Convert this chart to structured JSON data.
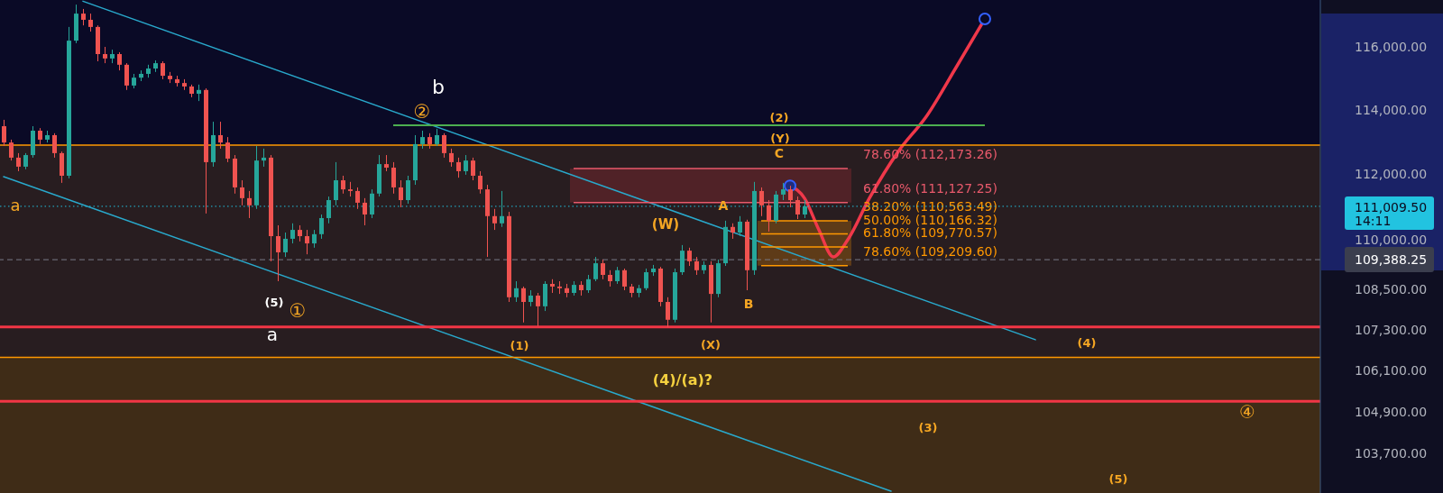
{
  "chart_data": {
    "type": "candlestick",
    "categories": [
      null,
      null,
      null,
      null,
      null,
      null,
      null,
      null,
      null,
      null,
      null,
      null,
      null,
      null,
      null,
      null,
      null,
      null,
      null,
      null,
      null,
      null,
      null,
      null,
      null,
      null,
      null,
      null,
      null,
      null,
      null,
      null,
      null,
      null,
      null,
      null,
      null,
      null,
      null,
      null,
      null,
      null,
      null,
      null,
      null,
      null,
      null,
      null,
      null,
      null,
      null,
      null,
      null,
      null,
      null,
      null,
      null,
      null,
      null,
      null,
      null,
      null,
      null,
      null,
      null,
      null,
      null,
      null,
      null,
      null,
      null,
      null,
      null,
      null,
      null,
      null,
      null,
      null,
      null,
      null,
      null,
      null,
      null,
      null,
      null,
      null,
      null,
      null,
      null,
      null,
      null,
      null,
      null,
      null,
      null,
      null,
      null,
      null,
      null,
      null,
      null,
      null,
      null,
      null,
      null,
      null,
      null,
      null,
      null,
      null,
      null,
      null,
      null,
      null,
      null,
      null,
      null,
      null,
      null,
      null,
      null,
      null,
      null,
      null,
      null,
      null,
      null,
      null,
      null,
      null,
      null,
      null,
      null,
      null,
      null,
      null,
      null,
      null,
      null,
      null,
      null,
      null,
      null,
      null,
      null,
      null,
      null,
      null,
      null,
      null,
      null,
      null,
      null,
      null,
      null,
      null,
      null,
      null,
      null,
      null,
      null,
      null,
      null,
      null,
      null,
      null,
      null,
      null,
      null,
      null,
      null,
      null,
      null,
      null,
      null,
      null,
      null,
      null,
      null,
      null,
      null,
      null,
      null
    ],
    "ohlc": [
      [
        113490,
        113690,
        112870,
        112980
      ],
      [
        112980,
        113070,
        112420,
        112510
      ],
      [
        112510,
        112650,
        112090,
        112230
      ],
      [
        112230,
        112650,
        112150,
        112590
      ],
      [
        112590,
        113490,
        112510,
        113350
      ],
      [
        113350,
        113430,
        112930,
        113070
      ],
      [
        113070,
        113350,
        112980,
        113210
      ],
      [
        113210,
        113270,
        112510,
        112650
      ],
      [
        112650,
        112700,
        111730,
        111950
      ],
      [
        111950,
        116640,
        111870,
        116200
      ],
      [
        116200,
        117360,
        116120,
        117070
      ],
      [
        117070,
        117220,
        116690,
        116870
      ],
      [
        116870,
        117070,
        116490,
        116640
      ],
      [
        116640,
        116690,
        115540,
        115770
      ],
      [
        115770,
        116000,
        115480,
        115630
      ],
      [
        115630,
        115910,
        115480,
        115770
      ],
      [
        115770,
        115830,
        115250,
        115430
      ],
      [
        115430,
        115480,
        114630,
        114770
      ],
      [
        114770,
        115140,
        114680,
        115020
      ],
      [
        115020,
        115250,
        114910,
        115140
      ],
      [
        115140,
        115430,
        115020,
        115310
      ],
      [
        115310,
        115570,
        115200,
        115480
      ],
      [
        115480,
        115540,
        114970,
        115080
      ],
      [
        115080,
        115200,
        114850,
        114970
      ],
      [
        114970,
        115080,
        114740,
        114850
      ],
      [
        114850,
        114970,
        114630,
        114740
      ],
      [
        114740,
        114800,
        114400,
        114510
      ],
      [
        114510,
        114800,
        114280,
        114630
      ],
      [
        114630,
        114680,
        110790,
        112370
      ],
      [
        112370,
        113630,
        112230,
        113210
      ],
      [
        113210,
        113630,
        112790,
        112980
      ],
      [
        112980,
        113150,
        112370,
        112480
      ],
      [
        112480,
        112590,
        111400,
        111590
      ],
      [
        111590,
        111810,
        111040,
        111260
      ],
      [
        111260,
        111480,
        110650,
        111040
      ],
      [
        111040,
        112870,
        110930,
        112420
      ],
      [
        112420,
        112790,
        112230,
        112510
      ],
      [
        112510,
        112590,
        109340,
        110100
      ],
      [
        110100,
        110430,
        108740,
        109610
      ],
      [
        109610,
        110210,
        109470,
        110020
      ],
      [
        110020,
        110490,
        109880,
        110290
      ],
      [
        110290,
        110430,
        109940,
        110100
      ],
      [
        110100,
        110290,
        109550,
        109880
      ],
      [
        109880,
        110290,
        109750,
        110160
      ],
      [
        110160,
        110760,
        110020,
        110650
      ],
      [
        110650,
        111310,
        110490,
        111200
      ],
      [
        111200,
        112370,
        111040,
        111810
      ],
      [
        111810,
        111950,
        111400,
        111530
      ],
      [
        111530,
        111760,
        111310,
        111480
      ],
      [
        111480,
        111590,
        110930,
        111120
      ],
      [
        111120,
        111260,
        110430,
        110760
      ],
      [
        110760,
        111530,
        110650,
        111400
      ],
      [
        111400,
        112590,
        111310,
        112310
      ],
      [
        112310,
        112590,
        112090,
        112200
      ],
      [
        112200,
        112370,
        111400,
        111590
      ],
      [
        111590,
        111810,
        110980,
        111200
      ],
      [
        111200,
        111950,
        111090,
        111810
      ],
      [
        111810,
        113210,
        111670,
        112930
      ],
      [
        112930,
        113350,
        112790,
        113150
      ],
      [
        113150,
        113270,
        112790,
        112930
      ],
      [
        112930,
        113410,
        112870,
        113210
      ],
      [
        113210,
        113270,
        112510,
        112650
      ],
      [
        112650,
        112790,
        112230,
        112370
      ],
      [
        112370,
        112510,
        111890,
        112090
      ],
      [
        112090,
        112590,
        111980,
        112420
      ],
      [
        112420,
        112510,
        111810,
        111950
      ],
      [
        111950,
        112090,
        111400,
        111530
      ],
      [
        111530,
        111670,
        109470,
        110710
      ],
      [
        110710,
        110930,
        110290,
        110490
      ],
      [
        110490,
        111480,
        110380,
        110710
      ],
      [
        110710,
        110840,
        108120,
        108260
      ],
      [
        108260,
        108740,
        108120,
        108530
      ],
      [
        108530,
        108580,
        107510,
        108120
      ],
      [
        108120,
        108470,
        107990,
        108310
      ],
      [
        108310,
        108390,
        107400,
        107990
      ],
      [
        107990,
        108740,
        107850,
        108660
      ],
      [
        108660,
        108800,
        108390,
        108580
      ],
      [
        108580,
        108740,
        108360,
        108530
      ],
      [
        108530,
        108660,
        108260,
        108390
      ],
      [
        108390,
        108740,
        108310,
        108630
      ],
      [
        108630,
        108740,
        108310,
        108470
      ],
      [
        108470,
        108930,
        108390,
        108800
      ],
      [
        108800,
        109470,
        108740,
        109280
      ],
      [
        109280,
        109390,
        108800,
        108930
      ],
      [
        108930,
        109070,
        108580,
        108740
      ],
      [
        108740,
        109170,
        108660,
        109070
      ],
      [
        109070,
        109120,
        108470,
        108580
      ],
      [
        108580,
        108660,
        108260,
        108390
      ],
      [
        108390,
        108630,
        108260,
        108530
      ],
      [
        108530,
        109120,
        108470,
        109010
      ],
      [
        109010,
        109230,
        108900,
        109120
      ],
      [
        109120,
        109170,
        107990,
        108120
      ],
      [
        108120,
        108260,
        107370,
        107590
      ],
      [
        107590,
        109120,
        107510,
        109010
      ],
      [
        109010,
        109830,
        108930,
        109660
      ],
      [
        109660,
        109750,
        109200,
        109340
      ],
      [
        109340,
        109470,
        108930,
        109070
      ],
      [
        109070,
        109340,
        108960,
        109230
      ],
      [
        109230,
        109340,
        107510,
        108360
      ],
      [
        108360,
        109390,
        108260,
        109280
      ],
      [
        109280,
        110570,
        109200,
        110380
      ],
      [
        110380,
        110490,
        110020,
        110210
      ],
      [
        110210,
        110710,
        110100,
        110540
      ],
      [
        110540,
        110600,
        108470,
        109070
      ],
      [
        109070,
        111760,
        108930,
        111480
      ],
      [
        111480,
        111590,
        110710,
        111040
      ],
      [
        111040,
        111200,
        110240,
        110570
      ],
      [
        110570,
        111480,
        110490,
        111370
      ],
      [
        111370,
        111730,
        111200,
        111530
      ],
      [
        111530,
        111640,
        110980,
        111200
      ],
      [
        111200,
        111310,
        110620,
        110760
      ],
      [
        110760,
        111200,
        110650,
        111009.5
      ],
      null,
      null,
      null,
      null,
      null,
      null,
      null,
      null,
      null,
      null,
      null,
      null,
      null,
      null,
      null,
      null,
      null,
      null,
      null,
      null,
      null,
      null,
      null,
      null,
      null,
      null,
      null,
      null,
      null,
      null,
      null,
      null,
      null,
      null,
      null,
      null,
      null,
      null,
      null,
      null,
      null,
      null,
      null,
      null,
      null,
      null,
      null,
      null,
      null,
      null,
      null,
      null,
      null,
      null,
      null,
      null,
      null,
      null,
      null,
      null,
      null,
      null,
      null,
      null,
      null,
      null,
      null,
      null,
      null,
      null,
      null
    ],
    "colors": [
      "#ef5350",
      "#ef5350",
      "#ef5350",
      "#26a69a",
      "#26a69a",
      "#ef5350",
      "#26a69a",
      "#ef5350",
      "#ef5350",
      "#26a69a",
      "#26a69a",
      "#ef5350",
      "#ef5350",
      "#ef5350",
      "#ef5350",
      "#26a69a",
      "#ef5350",
      "#ef5350",
      "#26a69a",
      "#26a69a",
      "#26a69a",
      "#26a69a",
      "#ef5350",
      "#ef5350",
      "#ef5350",
      "#ef5350",
      "#ef5350",
      "#26a69a",
      "#ef5350",
      "#26a69a",
      "#ef5350",
      "#ef5350",
      "#ef5350",
      "#ef5350",
      "#ef5350",
      "#26a69a",
      "#26a69a",
      "#ef5350",
      "#ef5350",
      "#26a69a",
      "#26a69a",
      "#ef5350",
      "#ef5350",
      "#26a69a",
      "#26a69a",
      "#26a69a",
      "#26a69a",
      "#ef5350",
      "#ef5350",
      "#ef5350",
      "#ef5350",
      "#26a69a",
      "#26a69a",
      "#ef5350",
      "#ef5350",
      "#ef5350",
      "#26a69a",
      "#26a69a",
      "#26a69a",
      "#ef5350",
      "#26a69a",
      "#ef5350",
      "#ef5350",
      "#ef5350",
      "#26a69a",
      "#ef5350",
      "#ef5350",
      "#ef5350",
      "#ef5350",
      "#26a69a",
      "#ef5350",
      "#26a69a",
      "#ef5350",
      "#26a69a",
      "#ef5350",
      "#26a69a",
      "#ef5350",
      "#ef5350",
      "#ef5350",
      "#26a69a",
      "#ef5350",
      "#26a69a",
      "#26a69a",
      "#ef5350",
      "#ef5350",
      "#26a69a",
      "#ef5350",
      "#ef5350",
      "#26a69a",
      "#26a69a",
      "#26a69a",
      "#ef5350",
      "#ef5350",
      "#26a69a",
      "#26a69a",
      "#ef5350",
      "#ef5350",
      "#26a69a",
      "#ef5350",
      "#26a69a",
      "#26a69a",
      "#ef5350",
      "#26a69a",
      "#ef5350",
      "#26a69a",
      "#ef5350",
      "#ef5350",
      "#26a69a",
      "#26a69a",
      "#ef5350",
      "#ef5350",
      "#26a69a",
      null,
      null,
      null,
      null,
      null,
      null,
      null,
      null,
      null,
      null,
      null,
      null,
      null,
      null,
      null,
      null,
      null,
      null,
      null,
      null,
      null,
      null,
      null,
      null,
      null,
      null,
      null,
      null,
      null,
      null,
      null,
      null,
      null,
      null,
      null,
      null,
      null,
      null,
      null,
      null,
      null,
      null,
      null,
      null,
      null,
      null,
      null,
      null,
      null,
      null,
      null,
      null,
      null,
      null,
      null,
      null,
      null,
      null,
      null,
      null,
      null,
      null,
      null,
      null,
      null,
      null,
      null,
      null,
      null,
      null,
      null
    ],
    "series": [
      {
        "type": "line",
        "color": "#29a9cc",
        "values": [
          null,
          null,
          null,
          null,
          null,
          null,
          null,
          null,
          null,
          null,
          null,
          117470,
          null,
          null,
          null,
          null,
          null,
          null,
          null,
          null,
          null,
          null,
          null,
          null,
          null,
          null,
          null,
          null,
          null,
          null,
          null,
          null,
          null,
          null,
          null,
          null,
          null,
          null,
          null,
          null,
          null,
          null,
          null,
          null,
          null,
          null,
          null,
          null,
          null,
          null,
          null,
          null,
          null,
          null,
          null,
          null,
          null,
          null,
          null,
          null,
          null,
          null,
          null,
          null,
          null,
          null,
          null,
          null,
          null,
          null,
          null,
          null,
          null,
          null,
          null,
          null,
          null,
          null,
          null,
          null,
          null,
          null,
          null,
          null,
          null,
          null,
          null,
          null,
          null,
          null,
          null,
          null,
          null,
          null,
          null,
          null,
          null,
          null,
          null,
          null,
          null,
          null,
          null,
          null,
          null,
          null,
          null,
          null,
          null,
          null,
          null,
          null,
          null,
          null,
          null,
          null,
          null,
          null,
          null,
          null,
          null,
          null,
          null,
          null,
          null,
          null,
          null,
          null,
          null,
          null,
          null,
          null,
          null,
          null,
          null,
          null,
          null,
          null,
          null,
          null,
          null,
          null,
          null,
          107000,
          null,
          null,
          null,
          null,
          null,
          null,
          null,
          null,
          null,
          null,
          null,
          null,
          null,
          null,
          null,
          null,
          null,
          null,
          null,
          null,
          null,
          null,
          null,
          null,
          null,
          null,
          null,
          null,
          null,
          null,
          null,
          null,
          null,
          null,
          null,
          null,
          null,
          null,
          null
        ]
      },
      {
        "type": "line",
        "color": "#29a9cc",
        "values": [
          111920,
          null,
          null,
          null,
          null,
          null,
          null,
          null,
          null,
          null,
          null,
          null,
          null,
          null,
          null,
          null,
          null,
          null,
          null,
          null,
          null,
          null,
          null,
          null,
          null,
          null,
          null,
          null,
          null,
          null,
          null,
          null,
          null,
          null,
          null,
          null,
          null,
          null,
          null,
          null,
          null,
          null,
          null,
          null,
          null,
          null,
          null,
          null,
          null,
          null,
          null,
          null,
          null,
          null,
          null,
          null,
          null,
          null,
          null,
          null,
          null,
          null,
          null,
          null,
          null,
          null,
          null,
          null,
          null,
          null,
          null,
          null,
          null,
          null,
          null,
          null,
          null,
          null,
          null,
          null,
          null,
          null,
          null,
          null,
          null,
          null,
          null,
          null,
          null,
          null,
          null,
          null,
          null,
          null,
          null,
          null,
          null,
          null,
          null,
          null,
          null,
          null,
          null,
          null,
          null,
          null,
          null,
          null,
          null,
          null,
          null,
          null,
          null,
          null,
          null,
          null,
          null,
          null,
          null,
          null,
          null,
          null,
          null,
          102620,
          null,
          null,
          null,
          null,
          null,
          null,
          null,
          null,
          null,
          null,
          null,
          null,
          null,
          null,
          null,
          null,
          null,
          null,
          null,
          null,
          null,
          null,
          null,
          null,
          null,
          null,
          null,
          null,
          null,
          null,
          null,
          null,
          null,
          null,
          null,
          null,
          null,
          null,
          null,
          null,
          null,
          null,
          null,
          null,
          null,
          null,
          null,
          null,
          null,
          null,
          null,
          null,
          null,
          null,
          null,
          null,
          null,
          null,
          null
        ]
      },
      {
        "type": "line",
        "color": "#f0384a",
        "values": [
          null,
          null,
          null,
          null,
          null,
          null,
          null,
          null,
          null,
          null,
          null,
          null,
          null,
          null,
          null,
          null,
          null,
          null,
          null,
          null,
          null,
          null,
          null,
          null,
          null,
          null,
          null,
          null,
          null,
          null,
          null,
          null,
          null,
          null,
          null,
          null,
          null,
          null,
          null,
          null,
          null,
          null,
          null,
          null,
          null,
          null,
          null,
          null,
          null,
          null,
          null,
          null,
          null,
          null,
          null,
          null,
          null,
          null,
          null,
          null,
          null,
          null,
          null,
          null,
          null,
          null,
          null,
          null,
          null,
          null,
          null,
          null,
          null,
          null,
          null,
          null,
          null,
          null,
          null,
          null,
          null,
          null,
          null,
          null,
          null,
          null,
          null,
          null,
          null,
          null,
          null,
          null,
          null,
          null,
          null,
          null,
          null,
          null,
          null,
          null,
          null,
          null,
          null,
          null,
          null,
          null,
          null,
          null,
          null,
          111640,
          null,
          111260,
          null,
          110290,
          null,
          109470,
          null,
          109990,
          null,
          null,
          111260,
          null,
          null,
          null,
          112700,
          null,
          null,
          null,
          113830,
          null,
          null,
          null,
          115340,
          null,
          null,
          null,
          116900,
          null,
          null,
          null,
          null,
          null,
          null,
          null,
          null,
          null,
          null,
          null,
          null,
          null,
          null,
          null,
          null,
          null,
          null,
          null,
          null,
          null,
          null,
          null,
          null,
          null,
          null,
          null,
          null,
          null,
          null,
          null,
          null,
          null,
          null,
          null,
          null,
          null,
          null,
          null,
          null,
          null,
          null,
          null,
          null,
          null,
          null
        ]
      }
    ],
    "ylim": [
      102570,
      117510
    ],
    "yticks": [
      {
        "value": 116000,
        "label": "116,000.00"
      },
      {
        "value": 114000,
        "label": "114,000.00"
      },
      {
        "value": 112000,
        "label": "112,000.00"
      },
      {
        "value": 110000,
        "label": "110,000.00"
      },
      {
        "value": 108500,
        "label": "108,500.00"
      },
      {
        "value": 107300,
        "label": "107,300.00"
      },
      {
        "value": 106100,
        "label": "106,100.00"
      },
      {
        "value": 104900,
        "label": "104,900.00"
      },
      {
        "value": 103700,
        "label": "103,700.00"
      }
    ],
    "log": true,
    "tick_labels": "y",
    "bands": [
      {
        "axis": "y",
        "from": 106480,
        "to": 112900,
        "color": "#281d20"
      },
      {
        "axis": "y",
        "from": 102570,
        "to": 106480,
        "color": "#3f2c17"
      },
      {
        "axis": "y",
        "from": 111127.25,
        "to": 112173.26,
        "color": "#f23645"
      },
      {
        "axis": "y",
        "from": 109209.6,
        "to": 110563.49,
        "color": "#ff9800"
      }
    ],
    "ref_lines": [
      {
        "axis": "y",
        "value": 113520,
        "color": "#4caf50"
      },
      {
        "axis": "y",
        "value": 112900,
        "color": "#ff9800"
      },
      {
        "axis": "y",
        "value": 107380,
        "color": "#f23645"
      },
      {
        "axis": "y",
        "value": 106480,
        "color": "#ff9800"
      },
      {
        "axis": "y",
        "value": 105200,
        "color": "#f23645"
      },
      {
        "axis": "y",
        "value": 112173.26,
        "label": "78.60% (112,173.26)",
        "color": "#e8596b"
      },
      {
        "axis": "y",
        "value": 111127.25,
        "label": "61.80% (111,127.25)",
        "color": "#e8596b"
      },
      {
        "axis": "y",
        "value": 110563.49,
        "label": "38.20% (110,563.49)",
        "color": "#ff9800"
      },
      {
        "axis": "y",
        "value": 110166.32,
        "label": "50.00% (110,166.32)",
        "color": "#ff9800"
      },
      {
        "axis": "y",
        "value": 109770.57,
        "label": "61.80% (109,770.57)",
        "color": "#ff9800"
      },
      {
        "axis": "y",
        "value": 109209.6,
        "label": "78.60% (109,209.60)",
        "color": "#ff9800"
      },
      {
        "axis": "y",
        "value": 111009.5,
        "label": "111,009.50",
        "color": "#22c3e0",
        "line_style": "dotted"
      },
      {
        "axis": "y",
        "value": 109388.25,
        "label": "109,388.25",
        "color": "#787b86",
        "line_style": "dashed"
      }
    ],
    "annotations": [
      "a",
      "b",
      "②",
      "(5)",
      "①",
      "a",
      "(1)",
      "(W)",
      "A",
      "B",
      "(X)",
      "(2)",
      "(Y)",
      "C",
      "(4)/(a)?",
      "(4)",
      "④",
      "(3)",
      "(5)",
      "14:11"
    ]
  }
}
